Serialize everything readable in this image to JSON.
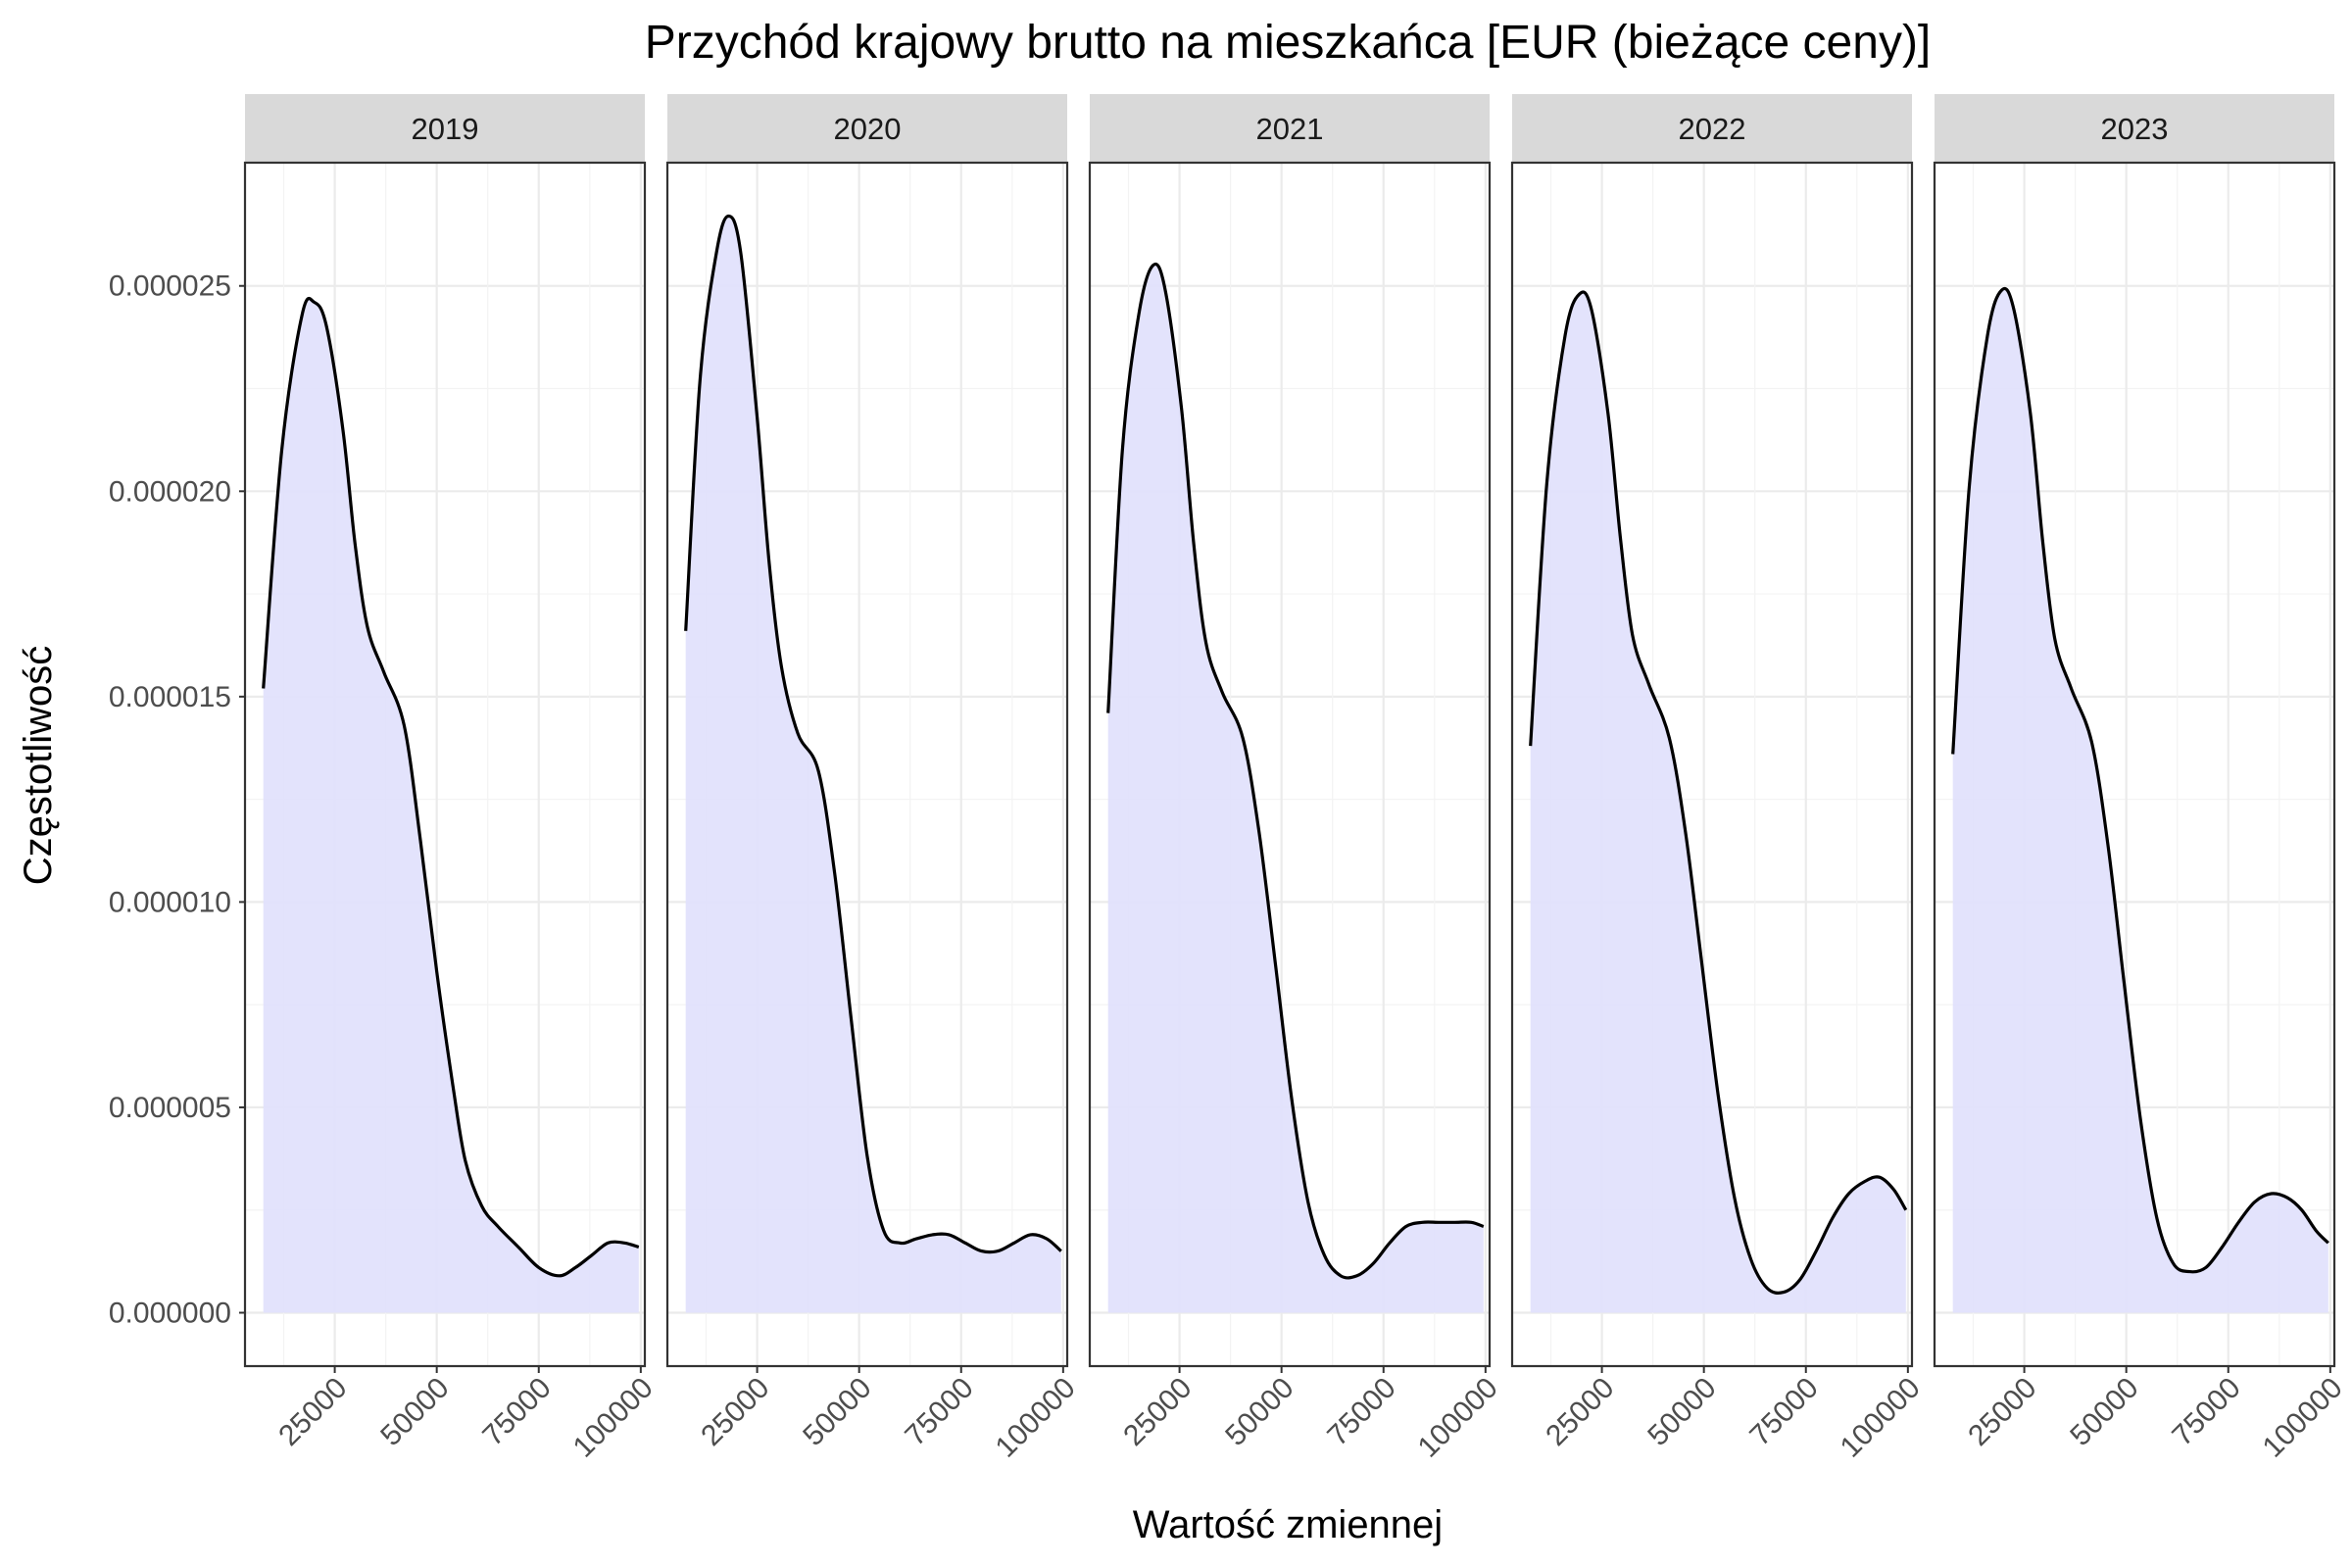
{
  "chart_data": {
    "type": "area",
    "title": "Przychód krajowy brutto na mieszkańca [EUR (bieżące ceny)]",
    "xlabel": "Wartość zmiennej",
    "ylabel": "Częstotliwość",
    "xlim": [
      3000,
      101000
    ],
    "ylim": [
      -1.3e-06,
      2.8e-05
    ],
    "x_ticks": [
      25000,
      50000,
      75000,
      100000
    ],
    "x_tick_labels": [
      "25000",
      "50000",
      "75000",
      "100000"
    ],
    "y_ticks": [
      0,
      5e-06,
      1e-05,
      1.5e-05,
      2e-05,
      2.5e-05
    ],
    "y_tick_labels": [
      "0.000000",
      "0.000005",
      "0.000010",
      "0.000015",
      "0.000020",
      "0.000025"
    ],
    "grid": true,
    "fill_color": "#e1e1fc",
    "line_color": "#000000",
    "strip_color": "#d9d9d9",
    "panels": [
      {
        "label": "2019",
        "x": [
          7500,
          12000,
          17000,
          20000,
          23000,
          27000,
          30000,
          33000,
          37000,
          42000,
          46000,
          50000,
          54000,
          57000,
          61000,
          65000,
          70000,
          75000,
          80000,
          84000,
          88000,
          92000,
          96000,
          99500
        ],
        "y": [
          1.52e-05,
          2.1e-05,
          2.43e-05,
          2.46e-05,
          2.4e-05,
          2.15e-05,
          1.87e-05,
          1.67e-05,
          1.56e-05,
          1.43e-05,
          1.15e-05,
          8.3e-06,
          5.5e-06,
          3.7e-06,
          2.6e-06,
          2.1e-06,
          1.6e-06,
          1.1e-06,
          9e-07,
          1.1e-06,
          1.4e-06,
          1.7e-06,
          1.7e-06,
          1.6e-06
        ]
      },
      {
        "label": "2020",
        "x": [
          7500,
          11000,
          15000,
          18000,
          21000,
          25000,
          28000,
          31000,
          35000,
          40000,
          44000,
          48000,
          52000,
          56000,
          60000,
          64000,
          68000,
          72000,
          76000,
          80000,
          84000,
          88000,
          92000,
          96000,
          99500
        ],
        "y": [
          1.66e-05,
          2.27e-05,
          2.58e-05,
          2.67e-05,
          2.58e-05,
          2.18e-05,
          1.82e-05,
          1.57e-05,
          1.41e-05,
          1.32e-05,
          1.07e-05,
          7.2e-06,
          3.8e-06,
          2e-06,
          1.7e-06,
          1.8e-06,
          1.9e-06,
          1.9e-06,
          1.7e-06,
          1.5e-06,
          1.5e-06,
          1.7e-06,
          1.9e-06,
          1.8e-06,
          1.5e-06
        ]
      },
      {
        "label": "2021",
        "x": [
          7500,
          11000,
          15000,
          18500,
          21500,
          25500,
          28500,
          31500,
          35500,
          40500,
          44500,
          48500,
          52500,
          56500,
          60500,
          64500,
          68500,
          72500,
          76500,
          80500,
          84500,
          88500,
          92500,
          96500,
          99500
        ],
        "y": [
          1.46e-05,
          2.1e-05,
          2.43e-05,
          2.55e-05,
          2.49e-05,
          2.2e-05,
          1.87e-05,
          1.63e-05,
          1.51e-05,
          1.4e-05,
          1.17e-05,
          8.5e-06,
          5.2e-06,
          2.7e-06,
          1.4e-06,
          9e-07,
          9e-07,
          1.2e-06,
          1.7e-06,
          2.1e-06,
          2.2e-06,
          2.2e-06,
          2.2e-06,
          2.2e-06,
          2.1e-06
        ]
      },
      {
        "label": "2022",
        "x": [
          7500,
          11500,
          16000,
          19500,
          22500,
          26500,
          29500,
          32500,
          36500,
          41500,
          45500,
          49500,
          53500,
          57500,
          61500,
          65500,
          69500,
          73500,
          77500,
          81500,
          85500,
          89500,
          93000,
          96500,
          99500
        ],
        "y": [
          1.38e-05,
          2.02e-05,
          2.38e-05,
          2.48e-05,
          2.44e-05,
          2.19e-05,
          1.89e-05,
          1.65e-05,
          1.53e-05,
          1.4e-05,
          1.17e-05,
          8.5e-06,
          5.3e-06,
          2.8e-06,
          1.3e-06,
          6e-07,
          5e-07,
          8e-07,
          1.5e-06,
          2.3e-06,
          2.9e-06,
          3.2e-06,
          3.3e-06,
          3e-06,
          2.5e-06
        ]
      },
      {
        "label": "2023",
        "x": [
          7500,
          11500,
          16000,
          19500,
          22500,
          26500,
          29500,
          32500,
          36500,
          41500,
          45500,
          49500,
          53500,
          57500,
          61500,
          65500,
          69500,
          73500,
          77500,
          81500,
          85500,
          89500,
          93000,
          96500,
          99500
        ],
        "y": [
          1.36e-05,
          2.01e-05,
          2.38e-05,
          2.49e-05,
          2.44e-05,
          2.19e-05,
          1.88e-05,
          1.64e-05,
          1.52e-05,
          1.39e-05,
          1.14e-05,
          8e-06,
          4.7e-06,
          2.3e-06,
          1.2e-06,
          1e-06,
          1.1e-06,
          1.6e-06,
          2.2e-06,
          2.7e-06,
          2.9e-06,
          2.8e-06,
          2.5e-06,
          2e-06,
          1.7e-06
        ]
      }
    ]
  }
}
